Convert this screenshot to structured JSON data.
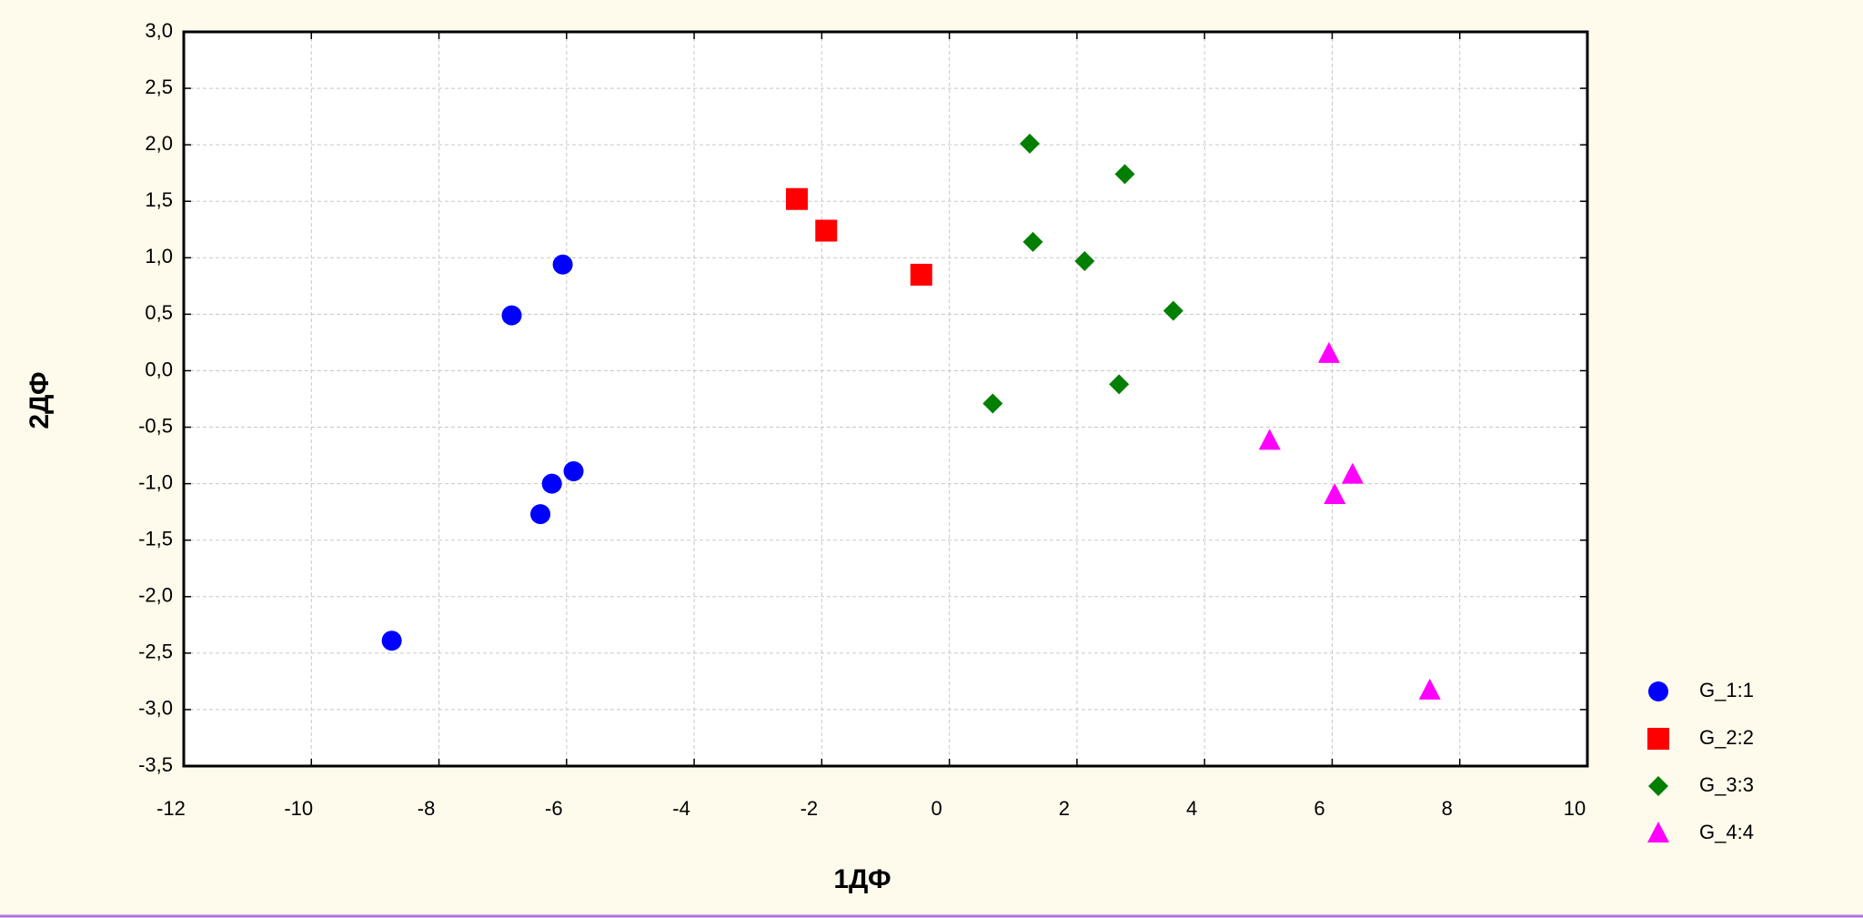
{
  "chart_data": {
    "type": "scatter",
    "x_label": "1ДФ",
    "y_label": "2ДФ",
    "xlim": [
      -12,
      10
    ],
    "xticks": [
      -12,
      -10,
      -8,
      -6,
      -4,
      -2,
      0,
      2,
      4,
      6,
      8,
      10
    ],
    "ylim": [
      -3.5,
      3.0
    ],
    "yticks": [
      {
        "value": 3.0,
        "label": "3,0"
      },
      {
        "value": 2.5,
        "label": "2,5"
      },
      {
        "value": 2.0,
        "label": "2,0"
      },
      {
        "value": 1.5,
        "label": "1,5"
      },
      {
        "value": 1.0,
        "label": "1,0"
      },
      {
        "value": 0.5,
        "label": "0,5"
      },
      {
        "value": 0.0,
        "label": "0,0"
      },
      {
        "value": -0.5,
        "label": "-0,5"
      },
      {
        "value": -1.0,
        "label": "-1,0"
      },
      {
        "value": -1.5,
        "label": "-1,5"
      },
      {
        "value": -2.0,
        "label": "-2,0"
      },
      {
        "value": -2.5,
        "label": "-2,5"
      },
      {
        "value": -3.0,
        "label": "-3,0"
      },
      {
        "value": -3.5,
        "label": "-3,5"
      }
    ],
    "grid": true,
    "legend": "right",
    "series": [
      {
        "name": "G_1:1",
        "color": "#0000ff",
        "marker": "circle",
        "x": [
          -6.06,
          -6.86,
          -5.89,
          -6.23,
          -6.41,
          -8.74
        ],
        "values": [
          0.94,
          0.49,
          -0.89,
          -1.0,
          -1.27,
          -2.39
        ]
      },
      {
        "name": "G_2:2",
        "color": "#ff0000",
        "marker": "square",
        "x": [
          -2.39,
          -1.93,
          -0.44
        ],
        "values": [
          1.52,
          1.24,
          0.85
        ]
      },
      {
        "name": "G_3:3",
        "color": "#007f00",
        "marker": "diamond",
        "x": [
          1.26,
          2.75,
          1.31,
          2.12,
          3.51,
          2.66,
          0.68
        ],
        "values": [
          2.01,
          1.74,
          1.14,
          0.97,
          0.53,
          -0.12,
          -0.29
        ]
      },
      {
        "name": "G_4:4",
        "color": "#ff00ff",
        "marker": "triangle",
        "x": [
          5.95,
          5.02,
          6.32,
          6.04,
          7.53
        ],
        "values": [
          0.15,
          -0.62,
          -0.92,
          -1.1,
          -2.83
        ]
      }
    ]
  }
}
